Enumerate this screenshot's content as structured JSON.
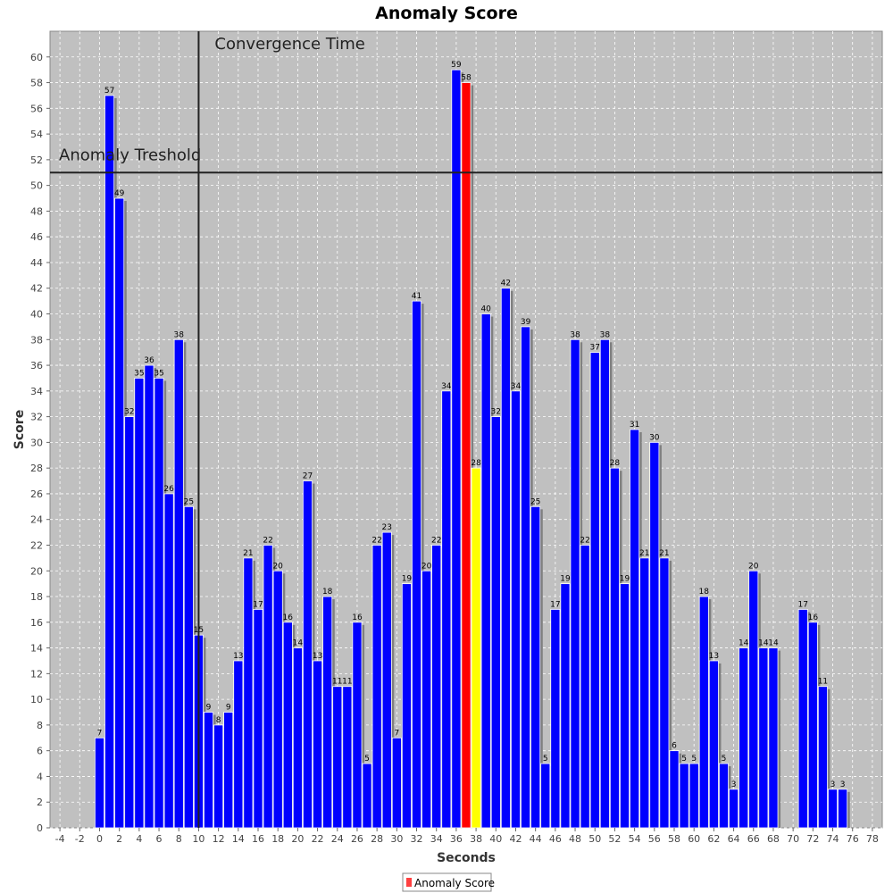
{
  "chart_data": {
    "type": "bar",
    "title": "Anomaly Score",
    "xlabel": "Seconds",
    "ylabel": "Score",
    "xlim": [
      -5,
      79
    ],
    "ylim": [
      0,
      62
    ],
    "x_ticks": [
      -4,
      -2,
      0,
      2,
      4,
      6,
      8,
      10,
      12,
      14,
      16,
      18,
      20,
      22,
      24,
      26,
      28,
      30,
      32,
      34,
      36,
      38,
      40,
      42,
      44,
      46,
      48,
      50,
      52,
      54,
      56,
      58,
      60,
      62,
      64,
      66,
      68,
      70,
      72,
      74,
      76,
      78
    ],
    "y_ticks": [
      0,
      2,
      4,
      6,
      8,
      10,
      12,
      14,
      16,
      18,
      20,
      22,
      24,
      26,
      28,
      30,
      32,
      34,
      36,
      38,
      40,
      42,
      44,
      46,
      48,
      50,
      52,
      54,
      56,
      58,
      60
    ],
    "grid": true,
    "legend_position": "bottom-center",
    "series": [
      {
        "name": "Anomaly Score",
        "x": [
          0,
          1,
          2,
          3,
          4,
          5,
          6,
          7,
          8,
          9,
          10,
          11,
          12,
          13,
          14,
          15,
          16,
          17,
          18,
          19,
          20,
          21,
          22,
          23,
          24,
          25,
          26,
          27,
          28,
          29,
          30,
          31,
          32,
          33,
          34,
          35,
          36,
          37,
          38,
          39,
          40,
          41,
          42,
          43,
          44,
          45,
          46,
          47,
          48,
          49,
          50,
          51,
          52,
          53,
          54,
          55,
          56,
          57,
          58,
          59,
          60,
          61,
          62,
          63,
          64,
          65,
          66,
          67,
          68,
          71,
          72,
          73,
          74,
          75
        ],
        "values": [
          7,
          57,
          49,
          32,
          35,
          36,
          35,
          26,
          38,
          25,
          15,
          9,
          8,
          9,
          13,
          21,
          17,
          22,
          20,
          16,
          14,
          27,
          13,
          18,
          11,
          11,
          16,
          5,
          22,
          23,
          7,
          19,
          41,
          20,
          22,
          34,
          59,
          58,
          28,
          40,
          32,
          42,
          34,
          39,
          25,
          5,
          17,
          19,
          38,
          22,
          37,
          38,
          28,
          19,
          31,
          21,
          30,
          21,
          6,
          5,
          5,
          18,
          13,
          5,
          3,
          14,
          20,
          14,
          14,
          17,
          16,
          11,
          3,
          3
        ],
        "highlight": {
          "37": "#ff0000",
          "38": "#ffff00"
        }
      }
    ],
    "annotations": [
      {
        "type": "horizontal-line",
        "value": 51,
        "label": "Anomaly Treshold"
      },
      {
        "type": "vertical-line",
        "value": 10,
        "label": "Convergence Time"
      }
    ],
    "colors": {
      "bar": "#0000ff",
      "bar_shadow": "#808080",
      "plot_background": "#c0c0c0",
      "legend_swatch": "#ff4040"
    }
  }
}
